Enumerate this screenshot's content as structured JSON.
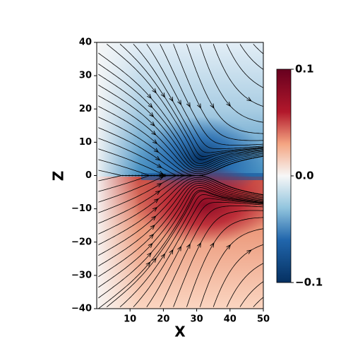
{
  "chart_data": {
    "type": "streamplot",
    "x_label": "X",
    "y_label": "Z",
    "xlim": [
      0,
      50
    ],
    "ylim": [
      -40,
      40
    ],
    "xticks": [
      10,
      20,
      30,
      40,
      50
    ],
    "yticks": [
      {
        "value": -40,
        "label": "−40"
      },
      {
        "value": -30,
        "label": "−30"
      },
      {
        "value": -20,
        "label": "−20"
      },
      {
        "value": -10,
        "label": "−10"
      },
      0,
      10,
      20,
      30,
      40
    ],
    "colorbar": {
      "lim": [
        -0.1,
        0.1
      ],
      "ticks": [
        {
          "value": -0.1,
          "label": "−0.1"
        },
        {
          "value": 0,
          "label": "0.0"
        },
        0.1
      ]
    }
  }
}
